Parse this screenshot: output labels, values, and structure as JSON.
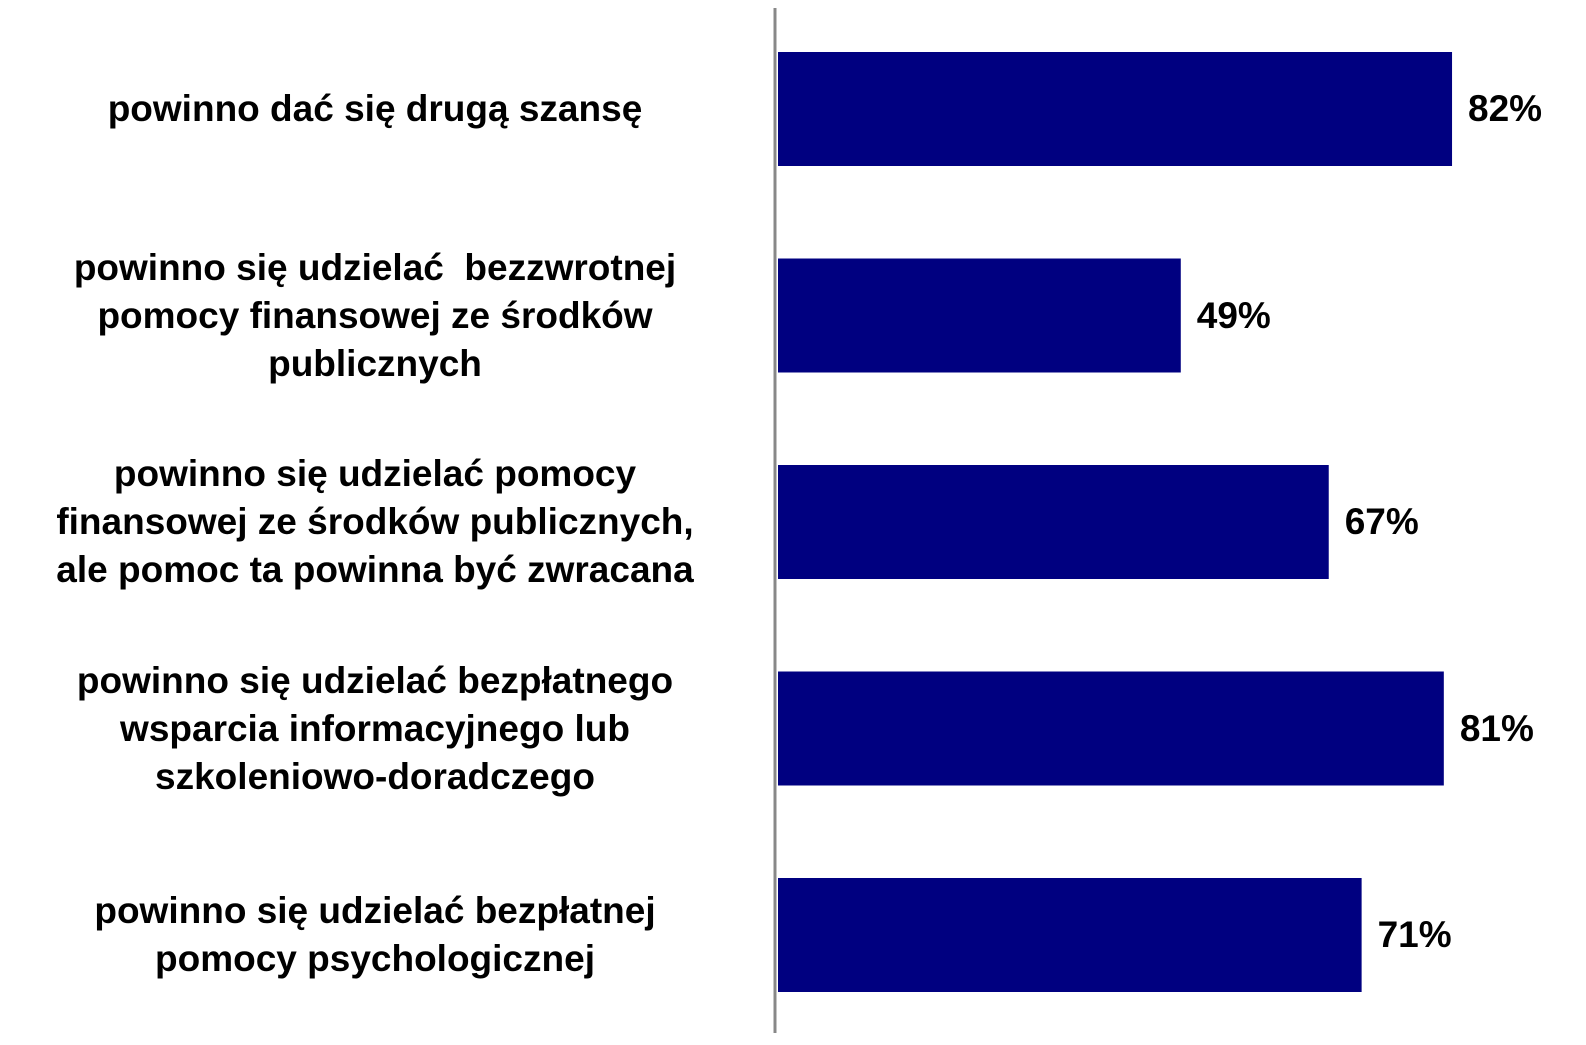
{
  "chart_data": {
    "type": "bar",
    "orientation": "horizontal",
    "categories": [
      "powinno dać się drugą szansę",
      "powinno się udzielać  bezzwrotnej\npomocy finansowej ze środków\npublicznych",
      "powinno się udzielać pomocy\nfinansowej ze środków publicznych,\nale pomoc ta powinna być zwracana",
      "powinno się udzielać bezpłatnego\nwsparcia informacyjnego lub\nszkoleniowo-doradczego",
      "powinno się udzielać bezpłatnej\npomocy psychologicznej"
    ],
    "values": [
      82,
      49,
      67,
      81,
      71
    ],
    "value_labels": [
      "82%",
      "49%",
      "67%",
      "81%",
      "71%"
    ],
    "color": "#000080"
  }
}
